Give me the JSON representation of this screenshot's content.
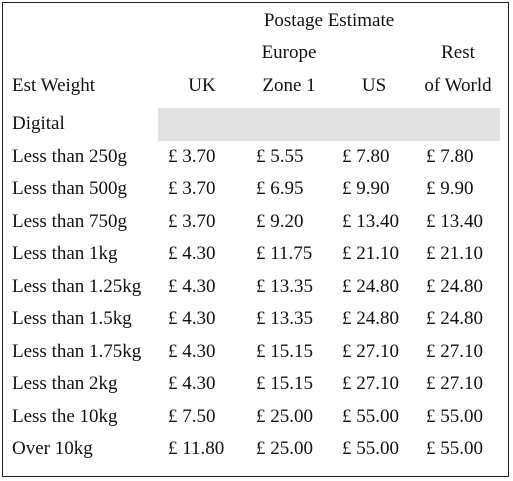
{
  "header": {
    "title": "Postage Estimate",
    "columns": [
      [
        "Est Weight"
      ],
      [
        "UK"
      ],
      [
        "Europe",
        "Zone 1"
      ],
      [
        "US"
      ],
      [
        "Rest",
        "of World"
      ]
    ]
  },
  "section": "Digital",
  "table": {
    "rows": [
      [
        "Less than 250g",
        "£ 3.70",
        "£ 5.55",
        "£ 7.80",
        "£ 7.80"
      ],
      [
        "Less than 500g",
        "£ 3.70",
        "£ 6.95",
        "£ 9.90",
        "£ 9.90"
      ],
      [
        "Less than 750g",
        "£ 3.70",
        "£ 9.20",
        "£ 13.40",
        "£ 13.40"
      ],
      [
        "Less than 1kg",
        "£ 4.30",
        "£ 11.75",
        "£ 21.10",
        "£ 21.10"
      ],
      [
        "Less than 1.25kg",
        "£ 4.30",
        "£ 13.35",
        "£ 24.80",
        "£ 24.80"
      ],
      [
        "Less than 1.5kg",
        "£ 4.30",
        "£ 13.35",
        "£ 24.80",
        "£ 24.80"
      ],
      [
        "Less than 1.75kg",
        "£ 4.30",
        "£ 15.15",
        "£ 27.10",
        "£ 27.10"
      ],
      [
        "Less than 2kg",
        "£ 4.30",
        "£ 15.15",
        "£ 27.10",
        "£ 27.10"
      ],
      [
        "Less the 10kg",
        "£ 7.50",
        "£ 25.00",
        "£ 55.00",
        "£ 55.00"
      ],
      [
        "Over 10kg",
        "£ 11.80",
        "£ 25.00",
        "£ 55.00",
        "£ 55.00"
      ]
    ]
  }
}
